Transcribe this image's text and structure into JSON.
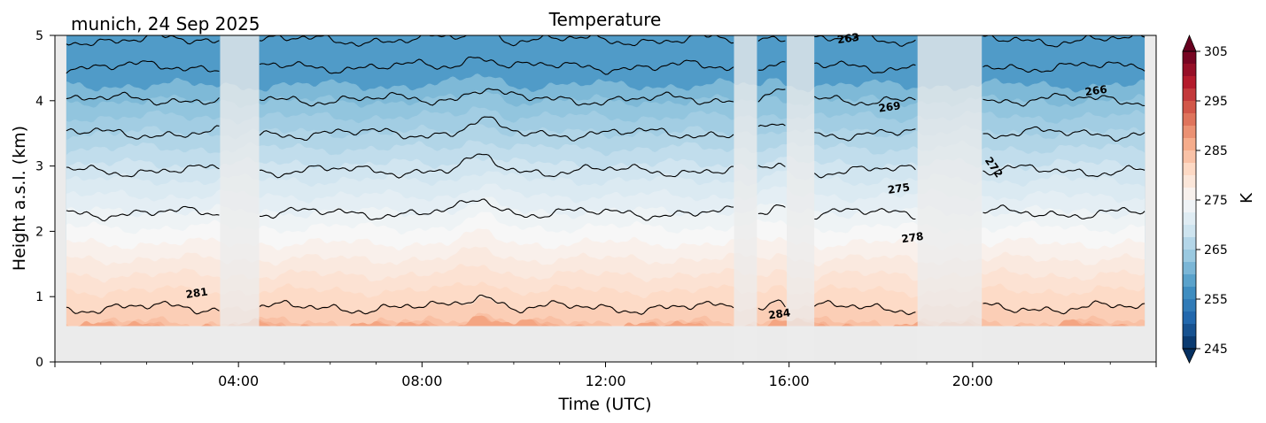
{
  "chart_data": {
    "type": "heatmap",
    "title": "Temperature",
    "subtitle": "munich, 24 Sep 2025",
    "xlabel": "Time (UTC)",
    "ylabel": "Height a.s.l. (km)",
    "xlim": [
      0,
      24
    ],
    "ylim": [
      0,
      5
    ],
    "x_ticks": [
      4,
      8,
      12,
      16,
      20
    ],
    "x_tick_labels": [
      "04:00",
      "08:00",
      "12:00",
      "16:00",
      "20:00"
    ],
    "y_ticks": [
      0,
      1,
      2,
      3,
      4,
      5
    ],
    "y_tick_labels": [
      "0",
      "1",
      "2",
      "3",
      "4",
      "5"
    ],
    "data_start_height_km": 0.55,
    "contour_levels": [
      263,
      266,
      269,
      272,
      275,
      278,
      281,
      284
    ],
    "contour_labels": [
      {
        "text": "263",
        "x": 17.3,
        "y": 4.9
      },
      {
        "text": "266",
        "x": 22.7,
        "y": 4.1
      },
      {
        "text": "269",
        "x": 18.2,
        "y": 3.85
      },
      {
        "text": "272",
        "x": 20.4,
        "y": 2.95
      },
      {
        "text": "275",
        "x": 18.4,
        "y": 2.6
      },
      {
        "text": "278",
        "x": 18.7,
        "y": 1.85
      },
      {
        "text": "281",
        "x": 3.1,
        "y": 1.0
      },
      {
        "text": "284",
        "x": 15.8,
        "y": 0.68
      }
    ],
    "contour_lines": [
      {
        "level": 263,
        "base": 4.93
      },
      {
        "level": 266,
        "base": 4.52
      },
      {
        "level": 269,
        "base": 4.02
      },
      {
        "level": 272,
        "base": 3.5
      },
      {
        "level": 275,
        "base": 2.93
      },
      {
        "level": 278,
        "base": 2.28
      },
      {
        "level": 281,
        "base": 0.83
      }
    ],
    "data_gaps_utc": [
      [
        3.6,
        4.45
      ],
      [
        14.8,
        15.3
      ],
      [
        15.95,
        16.55
      ],
      [
        18.8,
        20.2
      ]
    ],
    "colorbar": {
      "label": "K",
      "min": 245,
      "max": 305,
      "ticks": [
        245,
        255,
        265,
        275,
        285,
        295,
        305
      ],
      "tick_labels": [
        "245",
        "255",
        "265",
        "275",
        "285",
        "295",
        "305"
      ],
      "colormap": "RdBu_r",
      "extend": "both"
    },
    "grid": false
  }
}
